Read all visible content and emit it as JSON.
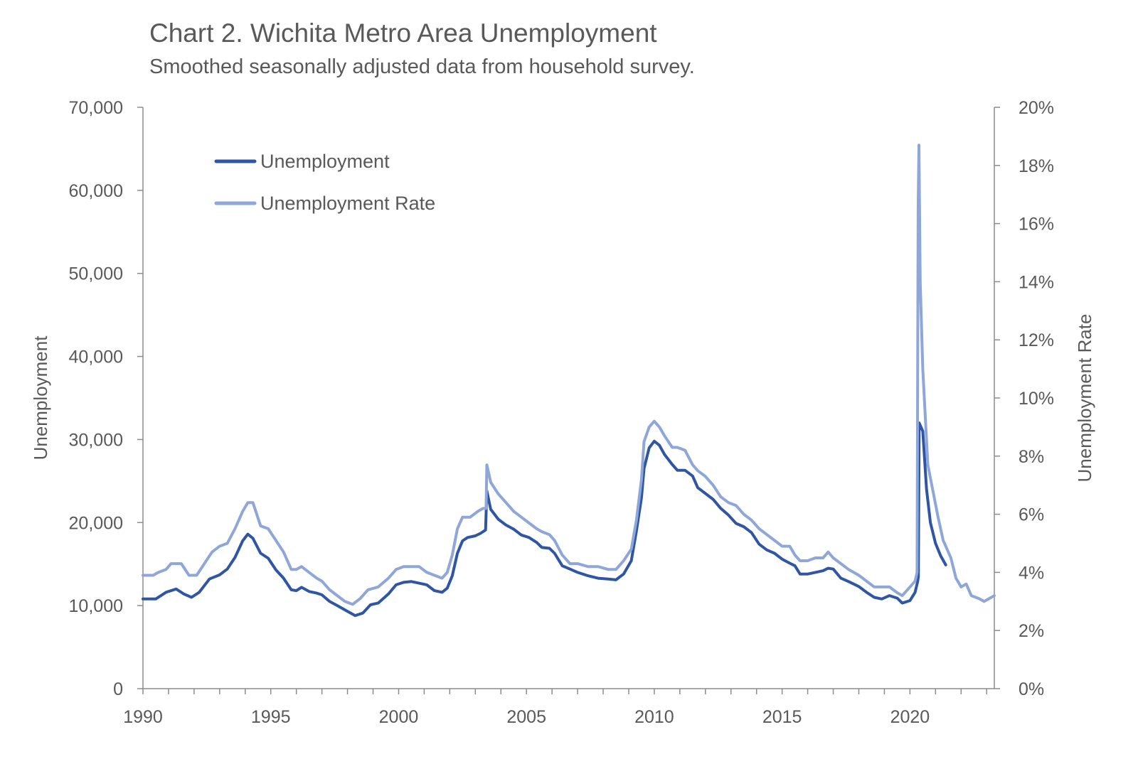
{
  "colors": {
    "unemployment": "#2f55a4",
    "rate": "#8ea6d8",
    "axis": "#8c8c8c",
    "text": "#595959"
  },
  "chart_data": {
    "type": "line",
    "title": "Chart 2. Wichita Metro Area Unemployment",
    "subtitle": "Smoothed seasonally adjusted data from household survey.",
    "ylabel": "Unemployment",
    "y2label": "Unemployment Rate",
    "xlim": [
      1990,
      2023.3
    ],
    "ylim": [
      0,
      70000
    ],
    "y2lim": [
      0,
      20
    ],
    "x_ticks": [
      "1990",
      "1995",
      "2000",
      "2005",
      "2010",
      "2015",
      "2020"
    ],
    "y_ticks": [
      "0",
      "10,000",
      "20,000",
      "30,000",
      "40,000",
      "50,000",
      "60,000",
      "70,000"
    ],
    "y2_ticks": [
      "0%",
      "2%",
      "4%",
      "6%",
      "8%",
      "10%",
      "12%",
      "14%",
      "16%",
      "18%",
      "20%"
    ],
    "legend_position": "top-left",
    "grid": false,
    "series": [
      {
        "name": "Unemployment",
        "axis": "left",
        "points": [
          [
            1990.0,
            10800
          ],
          [
            1990.5,
            10800
          ],
          [
            1990.9,
            11600
          ],
          [
            1991.3,
            12000
          ],
          [
            1991.6,
            11400
          ],
          [
            1991.9,
            11000
          ],
          [
            1992.2,
            11600
          ],
          [
            1992.6,
            13200
          ],
          [
            1993.0,
            13700
          ],
          [
            1993.3,
            14400
          ],
          [
            1993.6,
            15800
          ],
          [
            1993.9,
            17800
          ],
          [
            1994.1,
            18600
          ],
          [
            1994.3,
            18100
          ],
          [
            1994.6,
            16300
          ],
          [
            1994.9,
            15700
          ],
          [
            1995.2,
            14300
          ],
          [
            1995.5,
            13300
          ],
          [
            1995.8,
            11900
          ],
          [
            1996.0,
            11800
          ],
          [
            1996.2,
            12200
          ],
          [
            1996.5,
            11700
          ],
          [
            1996.8,
            11500
          ],
          [
            1997.0,
            11300
          ],
          [
            1997.3,
            10500
          ],
          [
            1997.6,
            10000
          ],
          [
            1998.0,
            9300
          ],
          [
            1998.3,
            8800
          ],
          [
            1998.6,
            9100
          ],
          [
            1998.9,
            10100
          ],
          [
            1999.2,
            10300
          ],
          [
            1999.6,
            11400
          ],
          [
            1999.9,
            12500
          ],
          [
            2000.2,
            12800
          ],
          [
            2000.5,
            12900
          ],
          [
            2000.8,
            12700
          ],
          [
            2001.1,
            12500
          ],
          [
            2001.4,
            11800
          ],
          [
            2001.7,
            11600
          ],
          [
            2001.9,
            12100
          ],
          [
            2002.1,
            13600
          ],
          [
            2002.3,
            16300
          ],
          [
            2002.5,
            17800
          ],
          [
            2002.7,
            18200
          ],
          [
            2003.0,
            18400
          ],
          [
            2003.2,
            18700
          ],
          [
            2003.4,
            19100
          ],
          [
            2003.45,
            23800
          ],
          [
            2003.6,
            21600
          ],
          [
            2003.9,
            20400
          ],
          [
            2004.2,
            19700
          ],
          [
            2004.5,
            19200
          ],
          [
            2004.8,
            18500
          ],
          [
            2005.1,
            18200
          ],
          [
            2005.4,
            17600
          ],
          [
            2005.6,
            17000
          ],
          [
            2005.9,
            16900
          ],
          [
            2006.1,
            16300
          ],
          [
            2006.4,
            14800
          ],
          [
            2006.7,
            14400
          ],
          [
            2007.0,
            14000
          ],
          [
            2007.4,
            13600
          ],
          [
            2007.8,
            13300
          ],
          [
            2008.2,
            13200
          ],
          [
            2008.5,
            13100
          ],
          [
            2008.8,
            13800
          ],
          [
            2009.1,
            15400
          ],
          [
            2009.3,
            19000
          ],
          [
            2009.5,
            23000
          ],
          [
            2009.6,
            26500
          ],
          [
            2009.8,
            29000
          ],
          [
            2010.0,
            29800
          ],
          [
            2010.2,
            29300
          ],
          [
            2010.4,
            28200
          ],
          [
            2010.7,
            27000
          ],
          [
            2010.9,
            26300
          ],
          [
            2011.2,
            26300
          ],
          [
            2011.5,
            25600
          ],
          [
            2011.7,
            24200
          ],
          [
            2012.0,
            23500
          ],
          [
            2012.3,
            22800
          ],
          [
            2012.6,
            21700
          ],
          [
            2012.9,
            20900
          ],
          [
            2013.2,
            19900
          ],
          [
            2013.5,
            19500
          ],
          [
            2013.8,
            18800
          ],
          [
            2014.1,
            17400
          ],
          [
            2014.4,
            16700
          ],
          [
            2014.7,
            16300
          ],
          [
            2015.0,
            15600
          ],
          [
            2015.3,
            15100
          ],
          [
            2015.5,
            14800
          ],
          [
            2015.7,
            13800
          ],
          [
            2016.0,
            13800
          ],
          [
            2016.3,
            14000
          ],
          [
            2016.6,
            14200
          ],
          [
            2016.8,
            14500
          ],
          [
            2017.0,
            14400
          ],
          [
            2017.3,
            13300
          ],
          [
            2017.6,
            12900
          ],
          [
            2018.0,
            12300
          ],
          [
            2018.3,
            11600
          ],
          [
            2018.6,
            11000
          ],
          [
            2018.9,
            10800
          ],
          [
            2019.2,
            11200
          ],
          [
            2019.5,
            10900
          ],
          [
            2019.7,
            10300
          ],
          [
            2020.0,
            10600
          ],
          [
            2020.2,
            11600
          ],
          [
            2020.3,
            12900
          ],
          [
            2020.33,
            13500
          ],
          [
            2020.36,
            32000
          ],
          [
            2020.5,
            31000
          ],
          [
            2020.65,
            24000
          ],
          [
            2020.8,
            20000
          ],
          [
            2021.0,
            17500
          ],
          [
            2021.2,
            16000
          ],
          [
            2021.4,
            14900
          ]
        ]
      },
      {
        "name": "Unemployment Rate",
        "axis": "right",
        "points": [
          [
            1990.0,
            3.9
          ],
          [
            1990.4,
            3.9
          ],
          [
            1990.6,
            4.0
          ],
          [
            1990.9,
            4.1
          ],
          [
            1991.1,
            4.3
          ],
          [
            1991.5,
            4.3
          ],
          [
            1991.8,
            3.9
          ],
          [
            1992.1,
            3.9
          ],
          [
            1992.4,
            4.3
          ],
          [
            1992.7,
            4.7
          ],
          [
            1993.0,
            4.9
          ],
          [
            1993.3,
            5.0
          ],
          [
            1993.6,
            5.5
          ],
          [
            1993.9,
            6.1
          ],
          [
            1994.1,
            6.4
          ],
          [
            1994.3,
            6.4
          ],
          [
            1994.6,
            5.6
          ],
          [
            1994.9,
            5.5
          ],
          [
            1995.2,
            5.1
          ],
          [
            1995.5,
            4.7
          ],
          [
            1995.8,
            4.1
          ],
          [
            1996.0,
            4.1
          ],
          [
            1996.2,
            4.2
          ],
          [
            1996.5,
            4.0
          ],
          [
            1996.8,
            3.8
          ],
          [
            1997.0,
            3.7
          ],
          [
            1997.3,
            3.4
          ],
          [
            1997.6,
            3.2
          ],
          [
            1997.9,
            3.0
          ],
          [
            1998.2,
            2.9
          ],
          [
            1998.5,
            3.1
          ],
          [
            1998.8,
            3.4
          ],
          [
            1999.2,
            3.5
          ],
          [
            1999.6,
            3.8
          ],
          [
            1999.9,
            4.1
          ],
          [
            2000.2,
            4.2
          ],
          [
            2000.5,
            4.2
          ],
          [
            2000.8,
            4.2
          ],
          [
            2001.1,
            4.0
          ],
          [
            2001.4,
            3.9
          ],
          [
            2001.7,
            3.8
          ],
          [
            2001.9,
            4.0
          ],
          [
            2002.1,
            4.6
          ],
          [
            2002.3,
            5.5
          ],
          [
            2002.5,
            5.9
          ],
          [
            2002.8,
            5.9
          ],
          [
            2003.1,
            6.1
          ],
          [
            2003.3,
            6.2
          ],
          [
            2003.42,
            6.2
          ],
          [
            2003.45,
            7.7
          ],
          [
            2003.6,
            7.1
          ],
          [
            2003.9,
            6.7
          ],
          [
            2004.2,
            6.4
          ],
          [
            2004.5,
            6.1
          ],
          [
            2004.8,
            5.9
          ],
          [
            2005.1,
            5.7
          ],
          [
            2005.4,
            5.5
          ],
          [
            2005.6,
            5.4
          ],
          [
            2005.9,
            5.3
          ],
          [
            2006.1,
            5.1
          ],
          [
            2006.4,
            4.6
          ],
          [
            2006.7,
            4.3
          ],
          [
            2007.0,
            4.3
          ],
          [
            2007.4,
            4.2
          ],
          [
            2007.8,
            4.2
          ],
          [
            2008.2,
            4.1
          ],
          [
            2008.5,
            4.1
          ],
          [
            2008.8,
            4.4
          ],
          [
            2009.1,
            4.8
          ],
          [
            2009.3,
            5.8
          ],
          [
            2009.5,
            7.2
          ],
          [
            2009.6,
            8.5
          ],
          [
            2009.8,
            9.0
          ],
          [
            2010.0,
            9.2
          ],
          [
            2010.2,
            9.0
          ],
          [
            2010.4,
            8.7
          ],
          [
            2010.7,
            8.3
          ],
          [
            2010.9,
            8.3
          ],
          [
            2011.2,
            8.2
          ],
          [
            2011.5,
            7.7
          ],
          [
            2011.7,
            7.5
          ],
          [
            2012.0,
            7.3
          ],
          [
            2012.3,
            7.0
          ],
          [
            2012.6,
            6.6
          ],
          [
            2012.9,
            6.4
          ],
          [
            2013.2,
            6.3
          ],
          [
            2013.5,
            6.0
          ],
          [
            2013.8,
            5.8
          ],
          [
            2014.1,
            5.5
          ],
          [
            2014.4,
            5.3
          ],
          [
            2014.7,
            5.1
          ],
          [
            2015.0,
            4.9
          ],
          [
            2015.3,
            4.9
          ],
          [
            2015.5,
            4.6
          ],
          [
            2015.7,
            4.4
          ],
          [
            2016.0,
            4.4
          ],
          [
            2016.3,
            4.5
          ],
          [
            2016.6,
            4.5
          ],
          [
            2016.8,
            4.7
          ],
          [
            2017.0,
            4.5
          ],
          [
            2017.3,
            4.3
          ],
          [
            2017.6,
            4.1
          ],
          [
            2018.0,
            3.9
          ],
          [
            2018.3,
            3.7
          ],
          [
            2018.6,
            3.5
          ],
          [
            2018.9,
            3.5
          ],
          [
            2019.2,
            3.5
          ],
          [
            2019.5,
            3.3
          ],
          [
            2019.7,
            3.2
          ],
          [
            2020.0,
            3.5
          ],
          [
            2020.2,
            3.7
          ],
          [
            2020.28,
            4.0
          ],
          [
            2020.32,
            16.5
          ],
          [
            2020.35,
            18.7
          ],
          [
            2020.4,
            14.0
          ],
          [
            2020.5,
            11.0
          ],
          [
            2020.7,
            7.7
          ],
          [
            2020.9,
            6.8
          ],
          [
            2021.1,
            5.9
          ],
          [
            2021.3,
            5.1
          ],
          [
            2021.6,
            4.5
          ],
          [
            2021.8,
            3.8
          ],
          [
            2022.0,
            3.5
          ],
          [
            2022.2,
            3.6
          ],
          [
            2022.4,
            3.2
          ],
          [
            2022.7,
            3.1
          ],
          [
            2022.9,
            3.0
          ],
          [
            2023.1,
            3.1
          ],
          [
            2023.3,
            3.2
          ]
        ]
      }
    ]
  }
}
